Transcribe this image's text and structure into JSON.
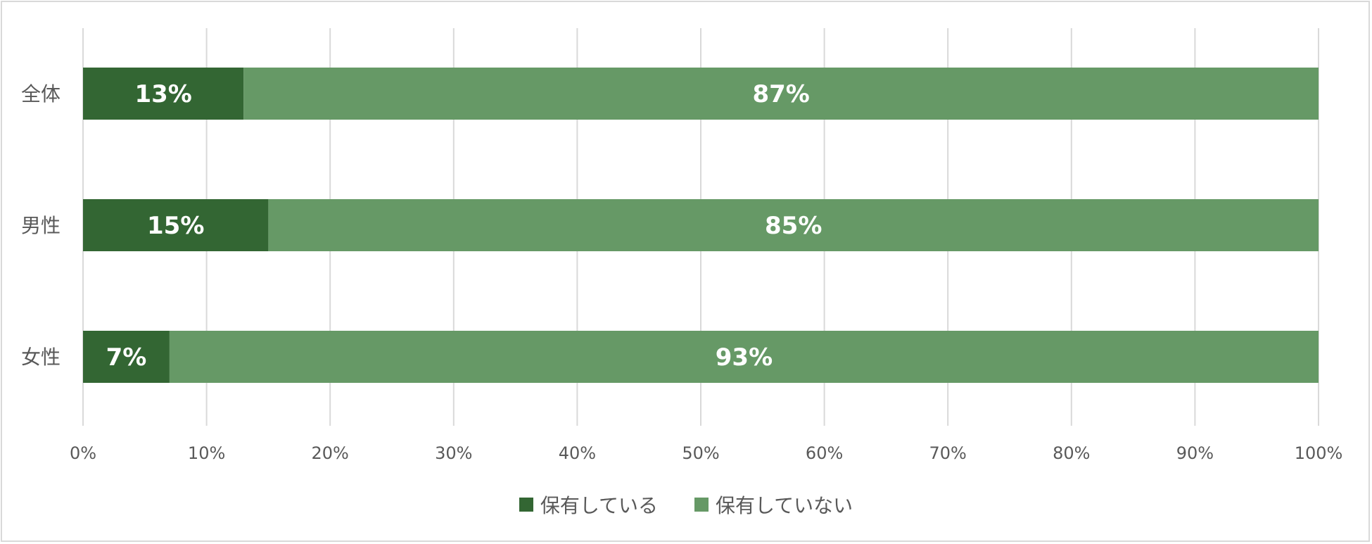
{
  "chart_data": {
    "type": "bar",
    "orientation": "horizontal",
    "stacked": true,
    "categories": [
      "全体",
      "男性",
      "女性"
    ],
    "series": [
      {
        "name": "保有している",
        "values": [
          13,
          15,
          7
        ],
        "color": "#336633"
      },
      {
        "name": "保有していない",
        "values": [
          87,
          85,
          93
        ],
        "color": "#669966"
      }
    ],
    "data_labels": [
      [
        "13%",
        "87%"
      ],
      [
        "15%",
        "85%"
      ],
      [
        "7%",
        "93%"
      ]
    ],
    "xlim": [
      0,
      100
    ],
    "x_ticks": [
      "0%",
      "10%",
      "20%",
      "30%",
      "40%",
      "50%",
      "60%",
      "70%",
      "80%",
      "90%",
      "100%"
    ],
    "grid": true,
    "legend_position": "bottom",
    "colors": {
      "grid": "#d9d9d9",
      "axis_text": "#595959",
      "data_label": "#ffffff",
      "frame": "#d9d9d9"
    }
  },
  "legend": {
    "items": [
      {
        "label": "保有している",
        "color": "#336633"
      },
      {
        "label": "保有していない",
        "color": "#669966"
      }
    ]
  }
}
